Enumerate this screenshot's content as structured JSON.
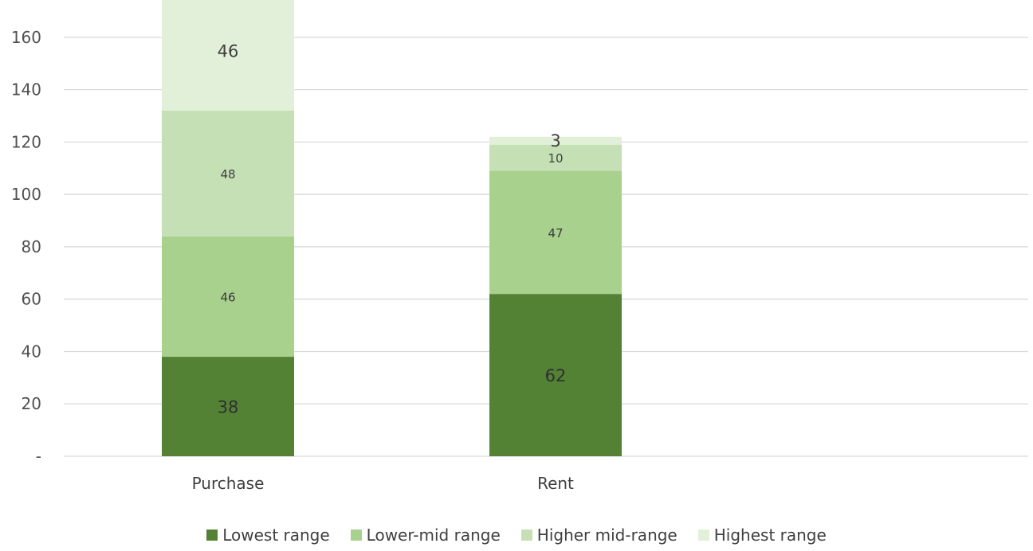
{
  "chart_data": {
    "type": "bar",
    "stacked": true,
    "categories": [
      "Purchase",
      "Rent"
    ],
    "series": [
      {
        "name": "Lowest range",
        "values": [
          38,
          62
        ],
        "color": "#548235"
      },
      {
        "name": "Lower-mid range",
        "values": [
          46,
          47
        ],
        "color": "#a9d18e"
      },
      {
        "name": "Higher mid-range",
        "values": [
          48,
          10
        ],
        "color": "#c5e0b4"
      },
      {
        "name": "Highest range",
        "values": [
          46,
          3
        ],
        "color": "#e2f0d9"
      }
    ],
    "y_ticks": [
      "-",
      "20",
      "40",
      "60",
      "80",
      "100",
      "120",
      "140",
      "160"
    ],
    "ylim": [
      0,
      170
    ],
    "grid": true,
    "legend_position": "bottom",
    "title": "",
    "xlabel": "",
    "ylabel": ""
  }
}
